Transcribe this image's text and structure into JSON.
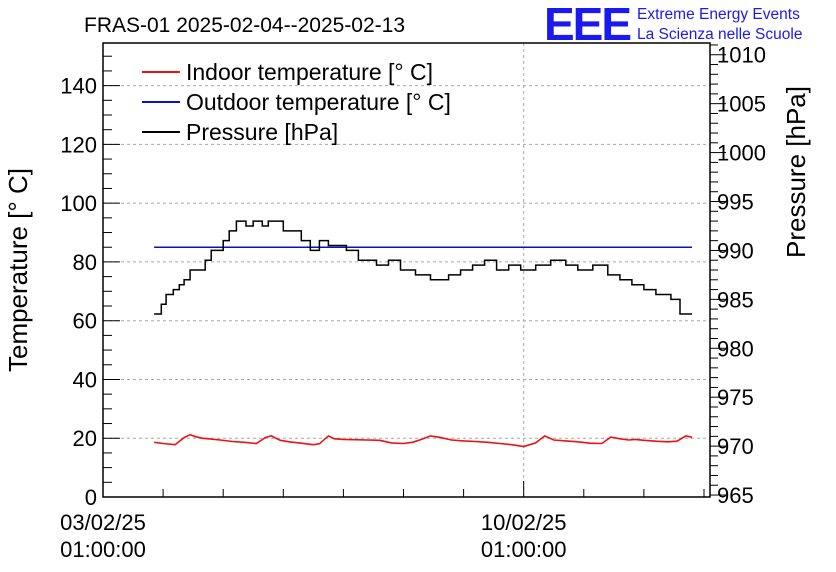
{
  "header": {
    "title": "FRAS-01 2025-02-04--2025-02-13",
    "logo_letters": "EEE",
    "logo_line1": "Extreme Energy Events",
    "logo_line2": "La Scienza nelle Scuole"
  },
  "colors": {
    "indoor": "#ee1111",
    "outdoor": "#0a10c8",
    "pressure": "#000000",
    "grid": "#a8a8a8",
    "logo": "#1a1aee"
  },
  "chart_data": {
    "type": "line",
    "title": "FRAS-01 2025-02-04--2025-02-13",
    "x_axis": {
      "label": "",
      "unit": "days since 2025-02-03 01:00:00",
      "range": [
        0,
        10.1
      ],
      "ticks": [
        {
          "value": 0,
          "date": "03/02/25",
          "time": "01:00:00"
        },
        {
          "value": 7,
          "date": "10/02/25",
          "time": "01:00:00"
        }
      ],
      "grid": true
    },
    "y_axis_left": {
      "label": "Temperature [° C]",
      "range": [
        0,
        154.5
      ],
      "ticks": [
        0,
        20,
        40,
        60,
        80,
        100,
        120,
        140
      ],
      "grid": true
    },
    "y_axis_right": {
      "label": "Pressure [hPa]",
      "range": [
        964.8,
        1011.2
      ],
      "ticks": [
        965,
        970,
        975,
        980,
        985,
        990,
        995,
        1000,
        1005,
        1010
      ]
    },
    "legend": {
      "placement": "top-left",
      "entries": [
        "Indoor temperature [° C]",
        "Outdoor temperature [° C]",
        "Pressure [hPa]"
      ]
    },
    "series": [
      {
        "name": "Indoor temperature [° C]",
        "axis": "left",
        "x": [
          0.85,
          1.0,
          1.2,
          1.35,
          1.45,
          1.55,
          1.65,
          1.75,
          1.95,
          2.15,
          2.35,
          2.55,
          2.7,
          2.8,
          2.95,
          3.1,
          3.3,
          3.5,
          3.6,
          3.75,
          3.85,
          4.0,
          4.2,
          4.4,
          4.6,
          4.8,
          5.0,
          5.15,
          5.3,
          5.45,
          5.6,
          5.8,
          6.0,
          6.2,
          6.4,
          6.6,
          6.8,
          7.0,
          7.2,
          7.35,
          7.5,
          7.7,
          7.9,
          8.1,
          8.3,
          8.45,
          8.6,
          8.75,
          8.85,
          9.0,
          9.2,
          9.4,
          9.55,
          9.7,
          9.8
        ],
        "values": [
          18.6,
          18.2,
          17.8,
          20.2,
          21.2,
          20.5,
          20.0,
          19.8,
          19.4,
          18.9,
          18.6,
          18.2,
          20.2,
          20.8,
          19.3,
          18.8,
          18.3,
          17.8,
          18.1,
          20.8,
          19.8,
          19.6,
          19.5,
          19.4,
          19.3,
          18.4,
          18.2,
          18.6,
          19.6,
          20.8,
          20.3,
          19.4,
          19.1,
          18.9,
          18.6,
          18.2,
          17.8,
          17.2,
          18.4,
          20.8,
          19.4,
          19.1,
          18.8,
          18.3,
          18.2,
          20.4,
          19.8,
          19.4,
          19.6,
          19.3,
          19.0,
          18.8,
          19.0,
          20.8,
          20.3
        ]
      },
      {
        "name": "Outdoor temperature [° C]",
        "axis": "left",
        "x": [
          0.85,
          9.8
        ],
        "values": [
          85,
          85
        ]
      },
      {
        "name": "Pressure [hPa]",
        "axis": "right",
        "x": [
          0.85,
          0.97,
          1.05,
          1.17,
          1.27,
          1.35,
          1.45,
          1.7,
          1.8,
          2.0,
          2.1,
          2.22,
          2.38,
          2.5,
          2.65,
          2.75,
          3.0,
          3.3,
          3.45,
          3.6,
          3.75,
          4.05,
          4.25,
          4.55,
          4.75,
          4.95,
          5.2,
          5.45,
          5.75,
          5.95,
          6.15,
          6.35,
          6.55,
          6.75,
          6.95,
          7.2,
          7.45,
          7.7,
          7.9,
          8.15,
          8.4,
          8.6,
          8.8,
          9.0,
          9.2,
          9.45,
          9.6,
          9.8
        ],
        "values": [
          983.5,
          984.5,
          985.5,
          986,
          986.5,
          987,
          988,
          989,
          990,
          991,
          992,
          993,
          992.5,
          993,
          992.5,
          993,
          992,
          991,
          990,
          991,
          990.5,
          990,
          989,
          988.5,
          989,
          988,
          987.5,
          987,
          987.5,
          988,
          988.5,
          989,
          988,
          988.5,
          988,
          988.5,
          989,
          988.5,
          988,
          988.5,
          987.5,
          987,
          986.5,
          986,
          985.5,
          985,
          983.5,
          983.5
        ]
      }
    ]
  }
}
